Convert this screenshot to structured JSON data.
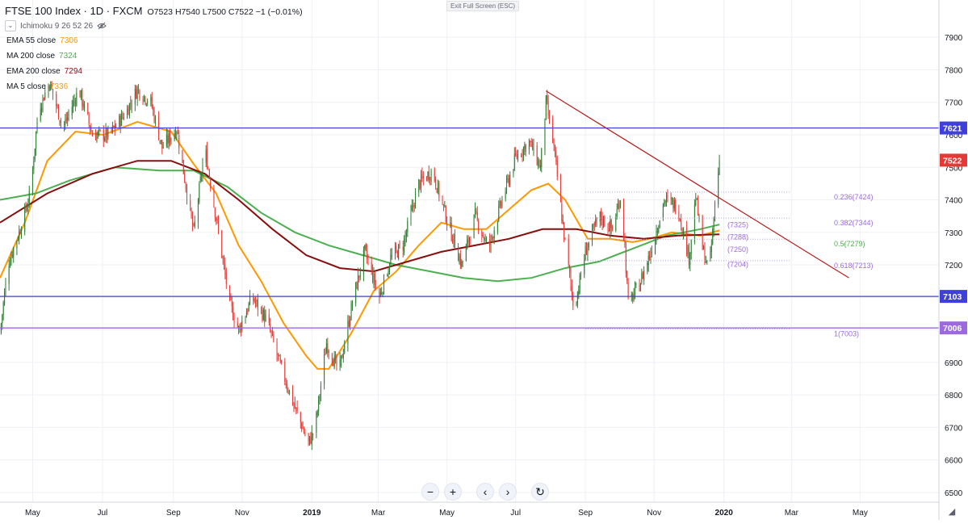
{
  "header": {
    "symbol": "FTSE 100 Index · 1D · FXCM",
    "ohlc": "O7523 H7540 L7500 C7522 −1 (−0.01%)",
    "ichimoku": "Ichimoku 9 26 52 26"
  },
  "indicators": [
    {
      "label": "EMA 55 close",
      "value": "7306",
      "color": "#ff9800"
    },
    {
      "label": "MA 200 close",
      "value": "7324",
      "color": "#4caf50"
    },
    {
      "label": "EMA 200 close",
      "value": "7294",
      "color": "#880e0e"
    },
    {
      "label": "MA 5 close",
      "value": "7336",
      "color": "#ff9800"
    }
  ],
  "exit_fullscreen": "Exit Full Screen (ESC)",
  "colors": {
    "up": "#2e7d32",
    "down": "#e53935",
    "hline": "#3f3fdc",
    "fib": "#9c6ade",
    "trend": "#b71c1c",
    "axis": "#131722",
    "grid": "#eef0f4"
  },
  "nav": {
    "icons": [
      "zoom-out-icon",
      "zoom-in-icon",
      "scroll-left-icon",
      "scroll-right-icon",
      "reset-icon"
    ]
  },
  "chart_data": {
    "type": "candlestick",
    "ylim": [
      6470,
      7970
    ],
    "y_ticks": [
      6500,
      6600,
      6700,
      6800,
      6900,
      7000,
      7100,
      7200,
      7300,
      7400,
      7500,
      7600,
      7700,
      7800,
      7900
    ],
    "x_ticks": [
      {
        "label": "May",
        "day": 7
      },
      {
        "label": "Jul",
        "day": 69
      },
      {
        "label": "Sep",
        "day": 132
      },
      {
        "label": "Nov",
        "day": 193
      },
      {
        "label": "2019",
        "day": 255
      },
      {
        "label": "Mar",
        "day": 314
      },
      {
        "label": "May",
        "day": 375
      },
      {
        "label": "Jul",
        "day": 436
      },
      {
        "label": "Sep",
        "day": 498
      },
      {
        "label": "Nov",
        "day": 559
      },
      {
        "label": "2020",
        "day": 621
      },
      {
        "label": "Mar",
        "day": 681
      },
      {
        "label": "May",
        "day": 742
      }
    ],
    "x_range": [
      -22,
      812
    ],
    "price_path": [
      [
        -22,
        6990
      ],
      [
        -15,
        7200
      ],
      [
        -5,
        7300
      ],
      [
        5,
        7420
      ],
      [
        12,
        7680
      ],
      [
        22,
        7760
      ],
      [
        34,
        7620
      ],
      [
        48,
        7740
      ],
      [
        60,
        7600
      ],
      [
        75,
        7600
      ],
      [
        90,
        7670
      ],
      [
        100,
        7740
      ],
      [
        112,
        7700
      ],
      [
        122,
        7560
      ],
      [
        135,
        7620
      ],
      [
        145,
        7400
      ],
      [
        150,
        7300
      ],
      [
        160,
        7560
      ],
      [
        172,
        7300
      ],
      [
        182,
        7080
      ],
      [
        190,
        7000
      ],
      [
        202,
        7100
      ],
      [
        215,
        7030
      ],
      [
        226,
        6900
      ],
      [
        240,
        6760
      ],
      [
        252,
        6650
      ],
      [
        258,
        6700
      ],
      [
        268,
        6960
      ],
      [
        279,
        6870
      ],
      [
        292,
        7100
      ],
      [
        302,
        7240
      ],
      [
        315,
        7100
      ],
      [
        325,
        7220
      ],
      [
        336,
        7260
      ],
      [
        350,
        7450
      ],
      [
        362,
        7490
      ],
      [
        375,
        7340
      ],
      [
        388,
        7200
      ],
      [
        400,
        7350
      ],
      [
        412,
        7250
      ],
      [
        424,
        7400
      ],
      [
        436,
        7530
      ],
      [
        448,
        7580
      ],
      [
        458,
        7500
      ],
      [
        463,
        7700
      ],
      [
        470,
        7560
      ],
      [
        478,
        7320
      ],
      [
        488,
        7060
      ],
      [
        498,
        7240
      ],
      [
        510,
        7350
      ],
      [
        522,
        7310
      ],
      [
        530,
        7420
      ],
      [
        536,
        7080
      ],
      [
        546,
        7140
      ],
      [
        556,
        7240
      ],
      [
        568,
        7400
      ],
      [
        580,
        7380
      ],
      [
        590,
        7220
      ],
      [
        596,
        7410
      ],
      [
        602,
        7250
      ],
      [
        608,
        7180
      ],
      [
        614,
        7420
      ],
      [
        617,
        7522
      ]
    ],
    "candles_daily": true,
    "last_close": 7522,
    "ma_series": [
      {
        "name": "EMA 55 close",
        "color": "#ff9800",
        "points": [
          [
            -22,
            7160
          ],
          [
            0,
            7330
          ],
          [
            20,
            7520
          ],
          [
            45,
            7610
          ],
          [
            70,
            7600
          ],
          [
            100,
            7640
          ],
          [
            130,
            7610
          ],
          [
            150,
            7510
          ],
          [
            170,
            7420
          ],
          [
            190,
            7260
          ],
          [
            210,
            7150
          ],
          [
            230,
            7020
          ],
          [
            250,
            6920
          ],
          [
            260,
            6880
          ],
          [
            270,
            6880
          ],
          [
            290,
            6990
          ],
          [
            310,
            7120
          ],
          [
            330,
            7180
          ],
          [
            350,
            7260
          ],
          [
            370,
            7330
          ],
          [
            390,
            7310
          ],
          [
            410,
            7310
          ],
          [
            430,
            7370
          ],
          [
            450,
            7430
          ],
          [
            465,
            7450
          ],
          [
            480,
            7400
          ],
          [
            500,
            7280
          ],
          [
            520,
            7280
          ],
          [
            540,
            7270
          ],
          [
            555,
            7280
          ],
          [
            575,
            7300
          ],
          [
            600,
            7290
          ],
          [
            617,
            7306
          ]
        ]
      },
      {
        "name": "MA 200 close",
        "color": "#4caf50",
        "points": [
          [
            -22,
            7400
          ],
          [
            10,
            7420
          ],
          [
            40,
            7460
          ],
          [
            80,
            7500
          ],
          [
            120,
            7490
          ],
          [
            150,
            7490
          ],
          [
            180,
            7440
          ],
          [
            210,
            7360
          ],
          [
            240,
            7300
          ],
          [
            270,
            7260
          ],
          [
            300,
            7230
          ],
          [
            330,
            7200
          ],
          [
            360,
            7180
          ],
          [
            390,
            7160
          ],
          [
            420,
            7150
          ],
          [
            450,
            7160
          ],
          [
            480,
            7190
          ],
          [
            510,
            7210
          ],
          [
            540,
            7250
          ],
          [
            570,
            7290
          ],
          [
            600,
            7310
          ],
          [
            617,
            7324
          ]
        ]
      },
      {
        "name": "EMA 200 close",
        "color": "#880e0e",
        "points": [
          [
            -22,
            7330
          ],
          [
            20,
            7420
          ],
          [
            60,
            7480
          ],
          [
            100,
            7520
          ],
          [
            130,
            7520
          ],
          [
            160,
            7480
          ],
          [
            190,
            7400
          ],
          [
            220,
            7310
          ],
          [
            250,
            7230
          ],
          [
            280,
            7190
          ],
          [
            310,
            7180
          ],
          [
            340,
            7210
          ],
          [
            370,
            7240
          ],
          [
            400,
            7260
          ],
          [
            430,
            7280
          ],
          [
            460,
            7310
          ],
          [
            490,
            7310
          ],
          [
            520,
            7290
          ],
          [
            550,
            7280
          ],
          [
            580,
            7290
          ],
          [
            617,
            7294
          ]
        ]
      }
    ],
    "horizontal_levels": [
      {
        "label": "7621",
        "value": 7621,
        "color": "#3f3fdc"
      },
      {
        "label": "7522",
        "value": 7522,
        "color": "#e53935"
      },
      {
        "label": "7103",
        "value": 7103,
        "color": "#3f3fdc"
      },
      {
        "label": "7006",
        "value": 7006,
        "color": "#9c6ade"
      }
    ],
    "fib_levels": [
      {
        "label": "0.236(7424)",
        "value": 7424,
        "color": "#9c6ade"
      },
      {
        "label": "0.382(7344)",
        "value": 7344,
        "color": "#9c6ade"
      },
      {
        "label": "0.5(7279)",
        "value": 7279,
        "color": "#4caf50"
      },
      {
        "label": "0.618(7213)",
        "value": 7213,
        "color": "#9c6ade"
      },
      {
        "label": "1(7003)",
        "value": 7003,
        "color": "#9c6ade"
      }
    ],
    "fib_small_labels": [
      {
        "label": "(7325)",
        "value": 7325
      },
      {
        "label": "(7288)",
        "value": 7288
      },
      {
        "label": "(7250)",
        "value": 7250
      },
      {
        "label": "(7204)",
        "value": 7204
      }
    ],
    "trendline": [
      [
        463,
        7735
      ],
      [
        732,
        7160
      ]
    ]
  }
}
